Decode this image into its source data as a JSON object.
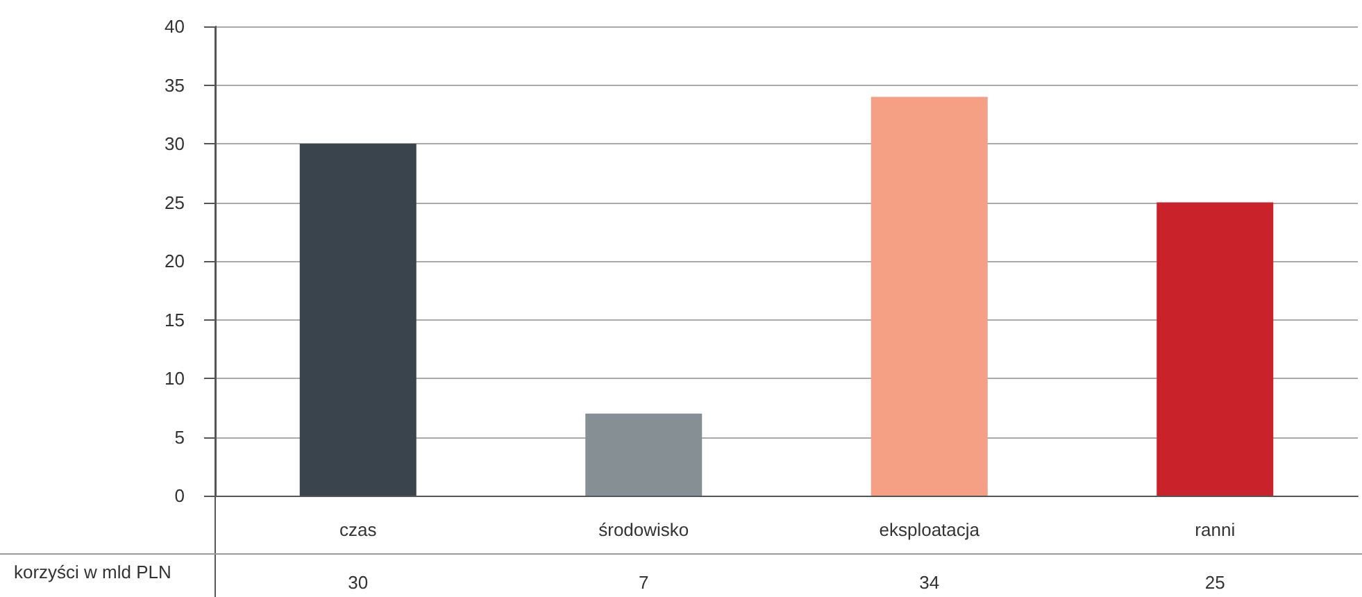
{
  "chart_data": {
    "type": "bar",
    "categories": [
      "czas",
      "środowisko",
      "eksploatacja",
      "ranni"
    ],
    "values": [
      30,
      7,
      34,
      25
    ],
    "colors": [
      "#3a444c",
      "#868f94",
      "#f5a085",
      "#c9222a"
    ],
    "ylim": [
      0,
      40
    ],
    "yticks": [
      0,
      5,
      10,
      15,
      20,
      25,
      30,
      35,
      40
    ],
    "grid": "y",
    "data_labels": true,
    "annotations": [
      "korzyści w mld PLN"
    ]
  }
}
